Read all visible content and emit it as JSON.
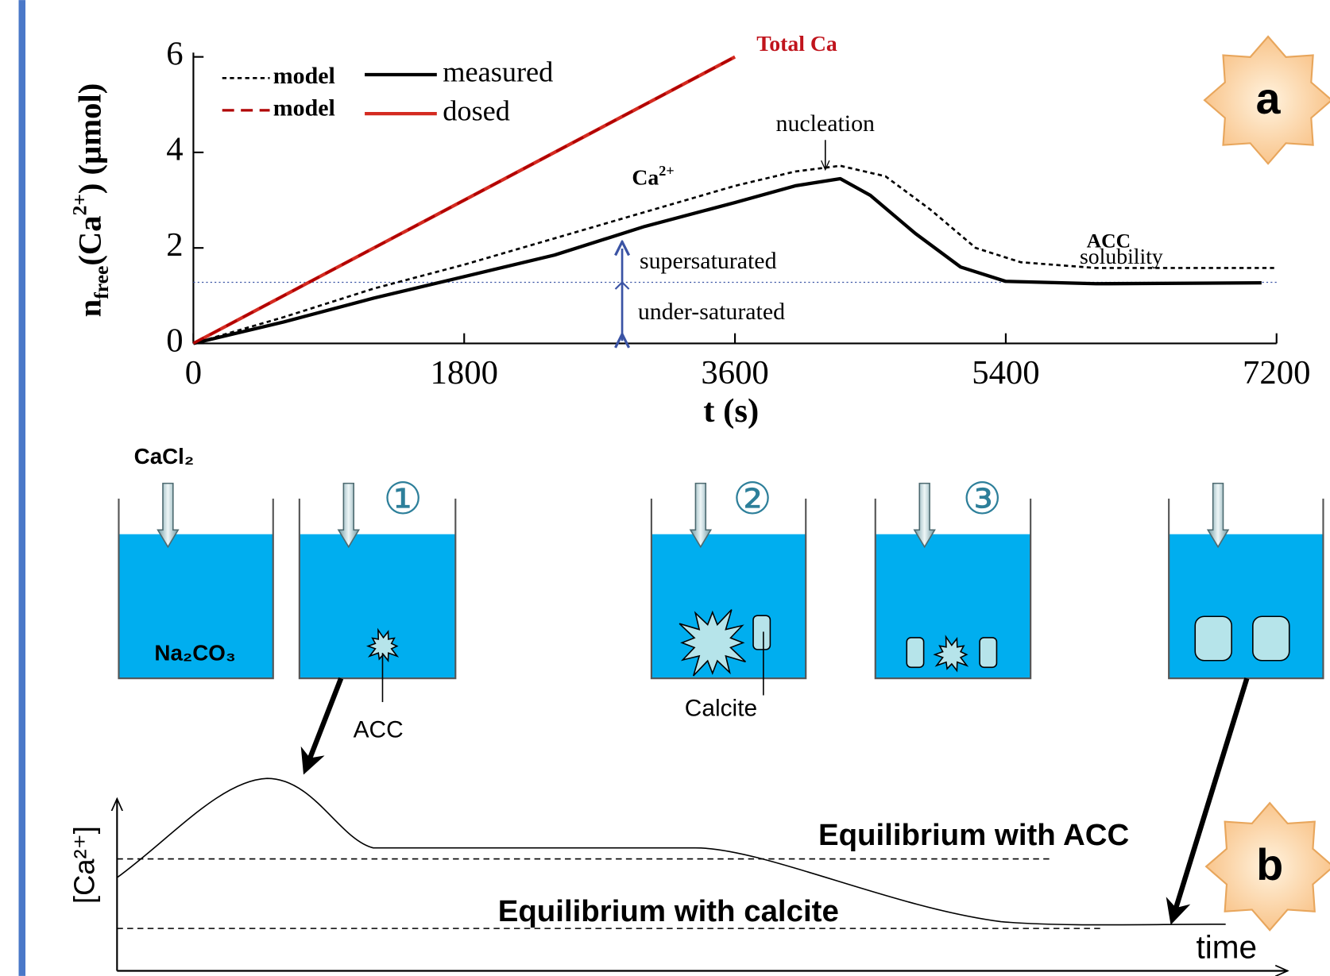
{
  "chart_data": {
    "type": "line",
    "x_label": "t (s)",
    "y_label": [
      "n",
      "free",
      "(Ca",
      "2+",
      ") (µmol)"
    ],
    "xlim": [
      0,
      7200
    ],
    "xticks": [
      0,
      1800,
      3600,
      5400,
      7200
    ],
    "ylim": [
      0,
      6
    ],
    "yticks": [
      0,
      2,
      4,
      6
    ],
    "series": [
      {
        "name": "model",
        "color": "#000000",
        "style": "dotted",
        "x": [
          0,
          600,
          1200,
          1800,
          2400,
          3000,
          3600,
          4000,
          4300,
          4600,
          4900,
          5200,
          5500,
          6000,
          7200
        ],
        "values": [
          0,
          0.55,
          1.15,
          1.65,
          2.2,
          2.75,
          3.3,
          3.6,
          3.72,
          3.5,
          2.8,
          2.0,
          1.7,
          1.58,
          1.58
        ]
      },
      {
        "name": "measured",
        "color": "#000000",
        "style": "solid",
        "x": [
          0,
          600,
          1200,
          1800,
          2400,
          3000,
          3600,
          4000,
          4300,
          4500,
          4800,
          5100,
          5400,
          6000,
          7100
        ],
        "values": [
          0,
          0.45,
          0.95,
          1.4,
          1.85,
          2.45,
          2.95,
          3.3,
          3.45,
          3.1,
          2.3,
          1.6,
          1.3,
          1.25,
          1.27
        ]
      },
      {
        "name": "model",
        "color": "#b00000",
        "style": "dashed",
        "x": [
          0,
          3600
        ],
        "values": [
          0,
          6
        ]
      },
      {
        "name": "dosed",
        "color": "#d42a20",
        "style": "solid",
        "x": [
          0,
          3600
        ],
        "values": [
          0,
          6
        ]
      }
    ],
    "solubility_level": 1.28,
    "saturation_arrow": {
      "x": 2850,
      "values": [
        0,
        2.04
      ]
    },
    "annotations": {
      "total_ca": "Total Ca",
      "nucleation": "nucleation",
      "ca_ion": [
        "Ca",
        "2+"
      ],
      "acc": "ACC",
      "solubility": "solubility",
      "supersaturated": "supersaturated",
      "under_saturated": "under-saturated"
    },
    "panel_label": "a"
  },
  "diagram": {
    "panel_label": "b",
    "reagent": "CaCl₂",
    "solution": "Na₂CO₃",
    "steps": [
      "①",
      "②",
      "③"
    ],
    "acc_label": "ACC",
    "calcite_label": "Calcite",
    "y_label": "[Ca²⁺]",
    "x_label": "time",
    "equilibrium_acc": "Equilibrium with ACC",
    "equilibrium_calcite": "Equilibrium with calcite"
  }
}
